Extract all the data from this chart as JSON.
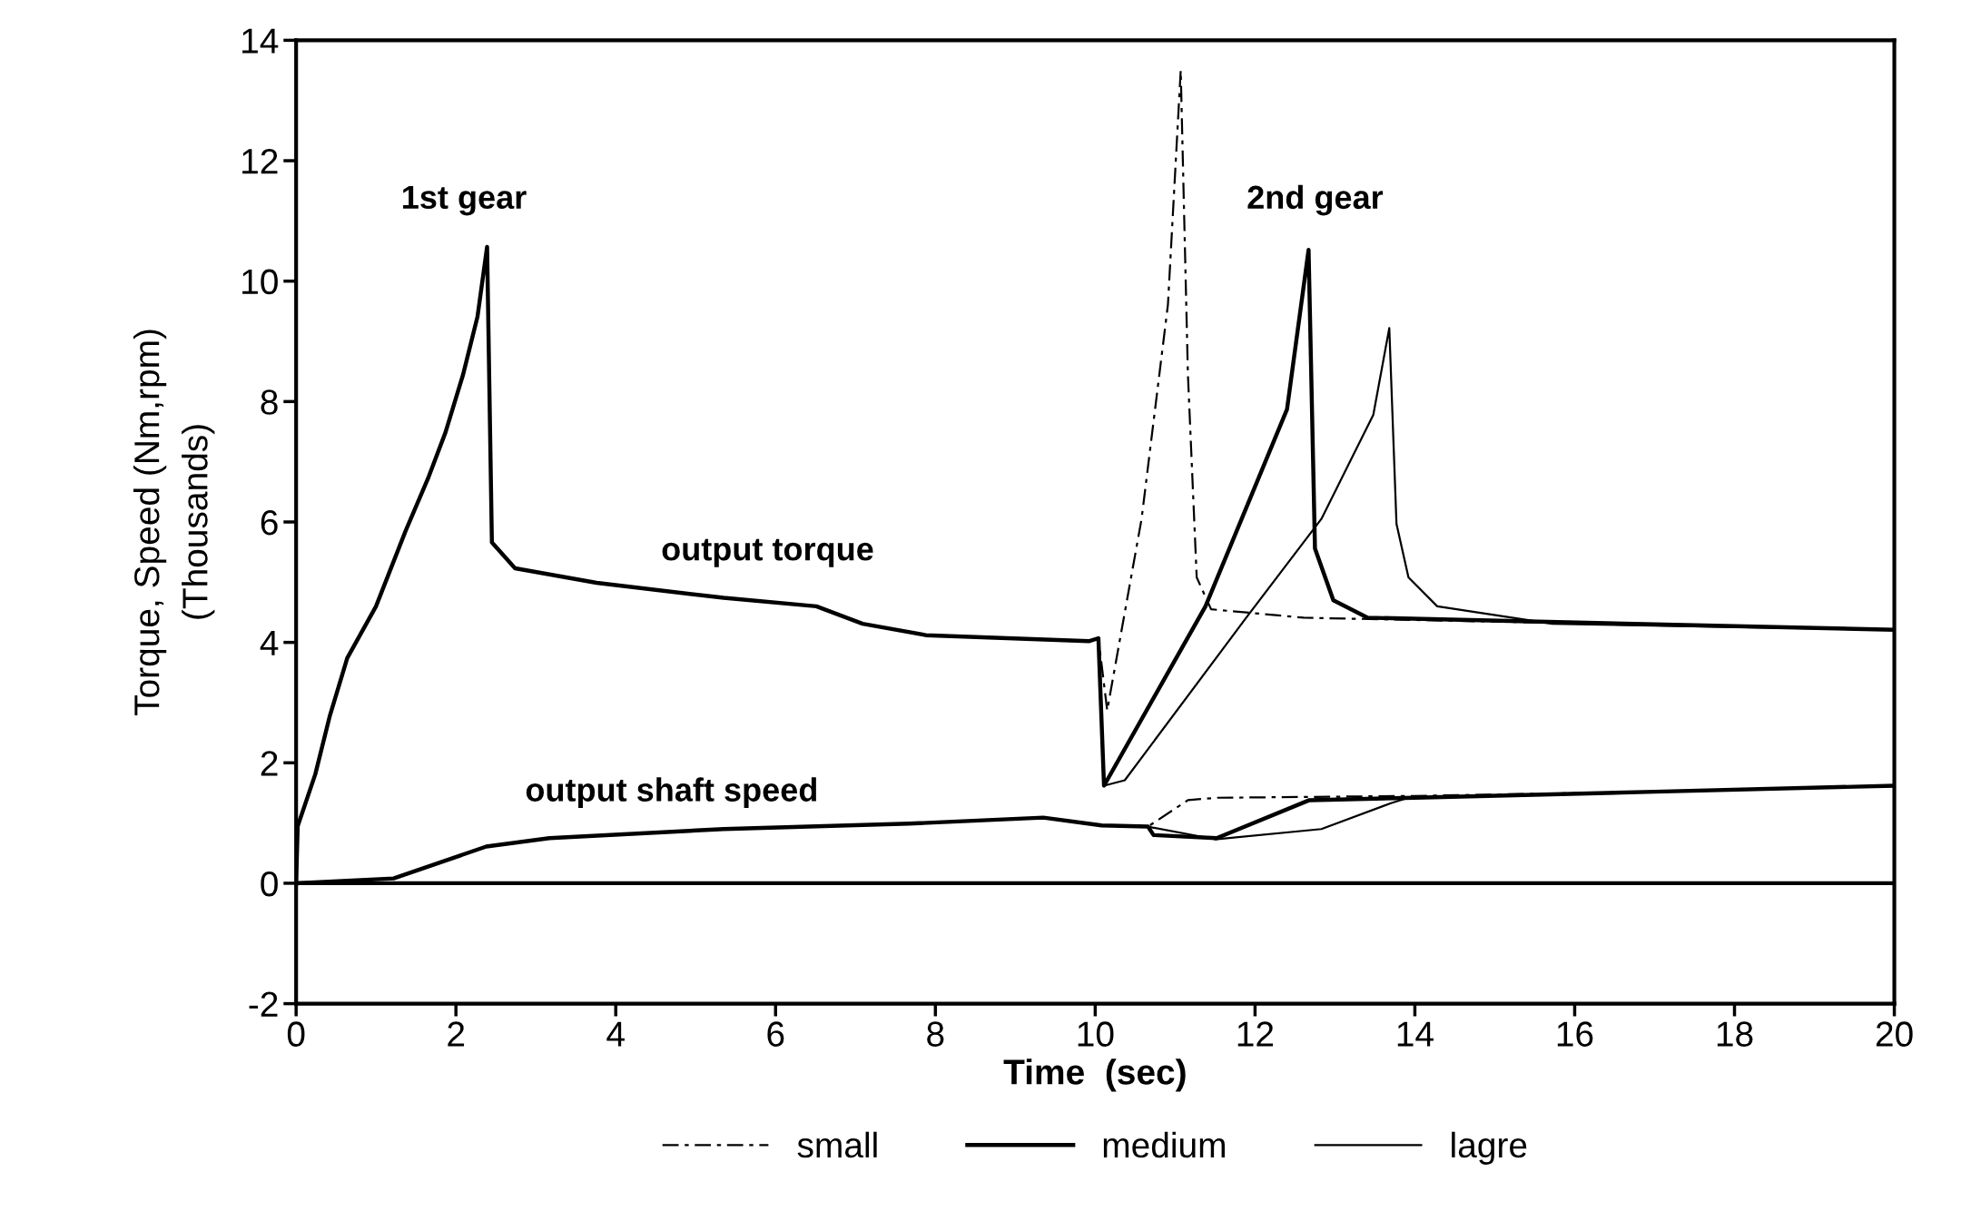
{
  "chart_data": {
    "type": "line",
    "xlabel": "Time  (sec)",
    "ylabel": "Torque, Speed (Nm,rpm)\n(Thousands)",
    "xlim": [
      0,
      20
    ],
    "xticks": [
      0,
      2,
      4,
      6,
      8,
      10,
      12,
      14,
      16,
      18,
      20
    ],
    "ylim": [
      -2,
      14
    ],
    "yticks": [
      -2,
      0,
      2,
      4,
      6,
      8,
      10,
      12,
      14
    ],
    "grid": false,
    "legend": "bottom",
    "marker": "none",
    "ref_lines": [
      {
        "axis": "y",
        "value": 0,
        "color": "#000000"
      }
    ],
    "annotations": [
      "1st gear",
      "2nd gear",
      "output torque",
      "output shaft speed"
    ],
    "series": [
      {
        "name": "small",
        "color": "#000000",
        "line_style": "dashed",
        "x": [
          0,
          0.02,
          0.24,
          0.42,
          0.64,
          1.0,
          1.37,
          1.65,
          1.87,
          2.09,
          2.27,
          2.39,
          2.45,
          2.74,
          3.76,
          5.35,
          6.51,
          7.09,
          7.88,
          9.92,
          10.04,
          10.15,
          10.58,
          10.91,
          11.07,
          11.16,
          11.27,
          11.45,
          12.61,
          20
        ],
        "values": [
          0,
          0.95,
          1.81,
          2.77,
          3.74,
          4.6,
          5.85,
          6.72,
          7.49,
          8.45,
          9.41,
          10.57,
          5.66,
          5.23,
          4.99,
          4.74,
          4.6,
          4.31,
          4.12,
          4.02,
          4.07,
          2.87,
          6.05,
          9.61,
          13.5,
          8.45,
          5.08,
          4.55,
          4.41,
          4.21
        ]
      },
      {
        "name": "medium",
        "color": "#000000",
        "line_style": "solid",
        "x": [
          0,
          0.02,
          0.24,
          0.42,
          0.64,
          1.0,
          1.37,
          1.65,
          1.87,
          2.09,
          2.27,
          2.39,
          2.45,
          2.74,
          3.76,
          5.35,
          6.51,
          7.09,
          7.88,
          9.92,
          10.04,
          10.11,
          11.38,
          12.4,
          12.67,
          12.75,
          12.98,
          13.41,
          20
        ],
        "values": [
          0,
          0.95,
          1.81,
          2.77,
          3.74,
          4.6,
          5.85,
          6.72,
          7.49,
          8.45,
          9.41,
          10.57,
          5.66,
          5.23,
          4.99,
          4.74,
          4.6,
          4.31,
          4.12,
          4.02,
          4.07,
          1.62,
          4.6,
          7.87,
          10.52,
          5.56,
          4.7,
          4.41,
          4.21
        ]
      },
      {
        "name": "lagre",
        "color": "#000000",
        "line_style": "solid",
        "x": [
          0,
          0.02,
          0.24,
          0.42,
          0.64,
          1.0,
          1.37,
          1.65,
          1.87,
          2.09,
          2.27,
          2.39,
          2.45,
          2.74,
          3.76,
          5.35,
          6.51,
          7.09,
          7.88,
          9.92,
          10.04,
          10.11,
          10.37,
          11.89,
          12.83,
          13.48,
          13.68,
          13.77,
          13.92,
          14.28,
          15.72,
          20
        ],
        "values": [
          0,
          0.95,
          1.81,
          2.77,
          3.74,
          4.6,
          5.85,
          6.72,
          7.49,
          8.45,
          9.41,
          10.57,
          5.66,
          5.23,
          4.99,
          4.74,
          4.6,
          4.31,
          4.12,
          4.02,
          4.07,
          1.62,
          1.71,
          4.41,
          6.05,
          7.78,
          9.22,
          5.97,
          5.08,
          4.6,
          4.31,
          4.21
        ]
      },
      {
        "color": "#000000",
        "line_style": "dashed",
        "x": [
          0,
          1.22,
          2.38,
          3.17,
          5.35,
          7.67,
          9.35,
          10.08,
          10.66,
          11.16,
          11.52,
          14,
          17,
          20
        ],
        "values": [
          0,
          0.08,
          0.61,
          0.75,
          0.9,
          0.99,
          1.09,
          0.96,
          0.94,
          1.38,
          1.42,
          1.45,
          1.52,
          1.62
        ]
      },
      {
        "color": "#000000",
        "line_style": "solid",
        "x": [
          0,
          1.22,
          2.38,
          3.17,
          5.35,
          7.67,
          9.35,
          10.08,
          10.66,
          10.73,
          11.52,
          12.68,
          14,
          17,
          20
        ],
        "values": [
          0,
          0.08,
          0.61,
          0.75,
          0.9,
          0.99,
          1.09,
          0.96,
          0.94,
          0.8,
          0.75,
          1.38,
          1.42,
          1.52,
          1.62
        ]
      },
      {
        "color": "#000000",
        "line_style": "solid",
        "x": [
          0,
          1.22,
          2.38,
          3.17,
          5.35,
          7.67,
          9.35,
          10.08,
          10.66,
          11.5,
          12.83,
          13.7,
          13.92,
          17,
          20
        ],
        "values": [
          0,
          0.08,
          0.61,
          0.75,
          0.9,
          0.99,
          1.09,
          0.96,
          0.94,
          0.73,
          0.9,
          1.33,
          1.42,
          1.52,
          1.62
        ]
      }
    ]
  }
}
